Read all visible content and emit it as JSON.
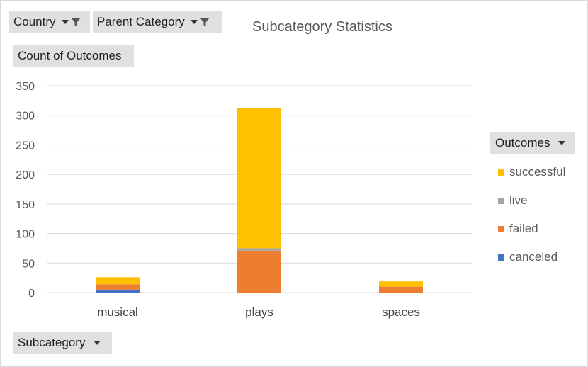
{
  "filters": {
    "country_label": "Country",
    "parent_category_label": "Parent Category",
    "values_label": "Count of Outcomes",
    "axis_field_label": "Subcategory",
    "legend_field_label": "Outcomes"
  },
  "icons": {
    "filter": "filter-funnel-icon",
    "dropdown": "dropdown-arrow-icon"
  },
  "chart_data": {
    "type": "bar",
    "stacked": true,
    "title": "Subcategory Statistics",
    "categories": [
      "musical",
      "plays",
      "spaces"
    ],
    "series": [
      {
        "name": "canceled",
        "color": "#4472c4",
        "values": [
          5,
          0,
          0
        ]
      },
      {
        "name": "failed",
        "color": "#ed7d31",
        "values": [
          9,
          71,
          10
        ]
      },
      {
        "name": "live",
        "color": "#a5a5a5",
        "values": [
          0,
          4,
          0
        ]
      },
      {
        "name": "successful",
        "color": "#ffc000",
        "values": [
          12,
          237,
          9
        ]
      }
    ],
    "legend_order": [
      "successful",
      "live",
      "failed",
      "canceled"
    ],
    "ylim": [
      0,
      350
    ],
    "yticks": [
      0,
      50,
      100,
      150,
      200,
      250,
      300,
      350
    ],
    "grid": true,
    "legend_position": "right"
  }
}
